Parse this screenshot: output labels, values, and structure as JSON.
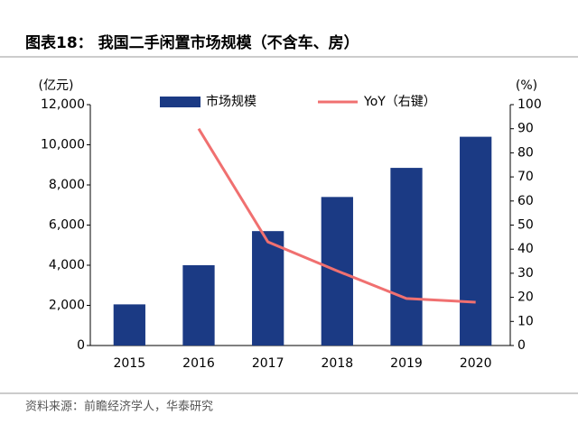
{
  "chart_data": {
    "type": "bar-line",
    "title": "图表18：  我国二手闲置市场规模（不含车、房）",
    "y_label": "(亿元)",
    "y2_label": "(%)",
    "categories": [
      "2015",
      "2016",
      "2017",
      "2018",
      "2019",
      "2020"
    ],
    "series": [
      {
        "name": "市场规模",
        "type": "bar",
        "color": "#1b3a84",
        "values": [
          2050,
          4000,
          5700,
          7400,
          8850,
          10400
        ]
      },
      {
        "name": "YoY（右键）",
        "type": "line",
        "axis": "y2",
        "color": "#f07070",
        "values": [
          null,
          90,
          43,
          31,
          19.5,
          18
        ]
      }
    ],
    "ylim": [
      0,
      12000
    ],
    "yticks": [
      0,
      {
        "value": 2000,
        "label": "2,000"
      },
      {
        "value": 4000,
        "label": "4,000"
      },
      {
        "value": 6000,
        "label": "6,000"
      },
      {
        "value": 8000,
        "label": "8,000"
      },
      {
        "value": 10000,
        "label": "10,000"
      },
      {
        "value": 12000,
        "label": "12,000"
      }
    ],
    "y2lim": [
      0,
      100
    ],
    "y2ticks": [
      0,
      10,
      20,
      30,
      40,
      50,
      60,
      70,
      80,
      90,
      100
    ],
    "source": "资料来源：前瞻经济学人，华泰研究"
  }
}
